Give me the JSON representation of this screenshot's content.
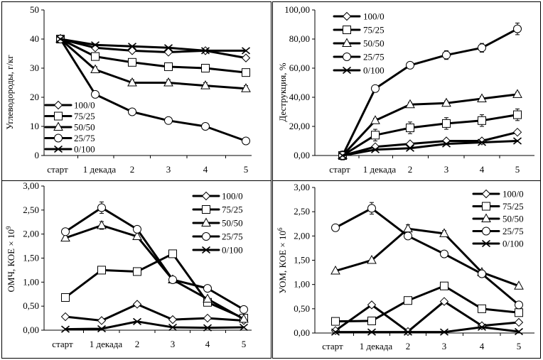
{
  "chart_data": [
    {
      "id": "hydrocarbons",
      "type": "line",
      "ylabel": "Углеводороды, г/кг",
      "ylim": [
        0,
        50
      ],
      "yticks": [
        0,
        10,
        20,
        30,
        40,
        50
      ],
      "ytick_labels": [
        "0",
        "10",
        "20",
        "30",
        "40",
        "50"
      ],
      "categories": [
        "старт",
        "1 декада",
        "2",
        "3",
        "4",
        "5"
      ],
      "legend_position": "bottom-left",
      "series": [
        {
          "name": "100/0",
          "marker": "diamond",
          "values": [
            40,
            37,
            36,
            35.5,
            36,
            33.5
          ],
          "errors": [
            0,
            0,
            0,
            0,
            0,
            0
          ]
        },
        {
          "name": "75/25",
          "marker": "square",
          "values": [
            40,
            34,
            32,
            30.5,
            30,
            28.5
          ],
          "errors": [
            1.2,
            1.2,
            1.2,
            1.2,
            1.2,
            1.2
          ]
        },
        {
          "name": "50/50",
          "marker": "triangle",
          "values": [
            40,
            29.5,
            25,
            25,
            24,
            23
          ],
          "errors": [
            1,
            1,
            1,
            1,
            1,
            1
          ]
        },
        {
          "name": "25/75",
          "marker": "circle",
          "values": [
            40,
            21,
            15,
            12,
            10,
            5
          ],
          "errors": [
            0,
            0,
            0,
            0,
            0,
            0
          ]
        },
        {
          "name": "0/100",
          "marker": "x",
          "values": [
            40,
            38,
            37.5,
            37,
            36,
            36
          ],
          "errors": [
            0,
            0,
            0,
            0,
            0,
            0
          ]
        }
      ]
    },
    {
      "id": "destruction",
      "type": "line",
      "ylabel": "Деструкция, %",
      "ylim": [
        0,
        100
      ],
      "yticks": [
        0,
        20,
        40,
        60,
        80,
        100
      ],
      "ytick_labels": [
        "0,00",
        "20,00",
        "40,00",
        "60,00",
        "80,00",
        "100,00"
      ],
      "categories": [
        "старт",
        "1 декада",
        "2",
        "3",
        "4",
        "5"
      ],
      "legend_position": "top-left",
      "series": [
        {
          "name": "100/0",
          "marker": "diamond",
          "values": [
            0,
            6,
            8,
            10,
            10,
            16
          ],
          "errors": [
            0,
            0,
            0,
            0,
            0,
            0
          ]
        },
        {
          "name": "75/25",
          "marker": "square",
          "values": [
            0,
            14,
            19,
            22,
            24,
            28
          ],
          "errors": [
            3,
            4,
            4,
            4,
            4,
            4
          ]
        },
        {
          "name": "50/50",
          "marker": "triangle",
          "values": [
            0,
            24,
            35,
            36,
            39,
            42
          ],
          "errors": [
            1.5,
            1.5,
            1.5,
            1.5,
            1.5,
            1.5
          ]
        },
        {
          "name": "25/75",
          "marker": "circle",
          "values": [
            0,
            46,
            62,
            69,
            74,
            87
          ],
          "errors": [
            2,
            2,
            2,
            3,
            3,
            4
          ]
        },
        {
          "name": "0/100",
          "marker": "x",
          "values": [
            0,
            4,
            5,
            8,
            9,
            10
          ],
          "errors": [
            0,
            0,
            0,
            0,
            0,
            0
          ]
        }
      ]
    },
    {
      "id": "omch",
      "type": "line",
      "ylabel": "ОМЧ, КОЕ × 10",
      "ylabel_sup": "9",
      "ylim": [
        0,
        3
      ],
      "yticks": [
        0,
        0.5,
        1,
        1.5,
        2,
        2.5,
        3
      ],
      "ytick_labels": [
        "0,00",
        "0,50",
        "1,00",
        "1,50",
        "2,00",
        "2,50",
        "3,00"
      ],
      "categories": [
        "старт",
        "1 декада",
        "2",
        "3",
        "4",
        "5"
      ],
      "legend_position": "top-right",
      "series": [
        {
          "name": "100/0",
          "marker": "diamond",
          "values": [
            0.28,
            0.2,
            0.54,
            0.22,
            0.25,
            0.2
          ],
          "errors": [
            0,
            0,
            0,
            0,
            0,
            0
          ]
        },
        {
          "name": "75/25",
          "marker": "square",
          "values": [
            0.68,
            1.25,
            1.22,
            1.59,
            0.58,
            0.25
          ],
          "errors": [
            0,
            0,
            0,
            0,
            0,
            0
          ]
        },
        {
          "name": "50/50",
          "marker": "triangle",
          "values": [
            1.92,
            2.18,
            1.95,
            1.05,
            0.65,
            0.23
          ],
          "errors": [
            0,
            0.08,
            0,
            0,
            0,
            0
          ]
        },
        {
          "name": "25/75",
          "marker": "circle",
          "values": [
            2.05,
            2.55,
            2.1,
            1.05,
            0.87,
            0.43
          ],
          "errors": [
            0,
            0.12,
            0.06,
            0,
            0,
            0
          ]
        },
        {
          "name": "0/100",
          "marker": "x",
          "values": [
            0.02,
            0.03,
            0.18,
            0.06,
            0.05,
            0.06
          ],
          "errors": [
            0,
            0,
            0,
            0,
            0,
            0
          ]
        }
      ]
    },
    {
      "id": "uom",
      "type": "line",
      "ylabel": "УОМ, КОЕ × 10",
      "ylabel_sup": "6",
      "ylim": [
        0,
        3
      ],
      "yticks": [
        0,
        0.5,
        1,
        1.5,
        2,
        2.5,
        3
      ],
      "ytick_labels": [
        "0,00",
        "0,50",
        "1,00",
        "1,50",
        "2,00",
        "2,50",
        "3,00"
      ],
      "categories": [
        "старт",
        "1 декада",
        "2",
        "3",
        "4",
        "5"
      ],
      "legend_position": "top-right",
      "series": [
        {
          "name": "100/0",
          "marker": "diamond",
          "values": [
            0.05,
            0.58,
            0.03,
            0.65,
            0.15,
            0.22
          ],
          "errors": [
            0,
            0,
            0,
            0,
            0,
            0
          ]
        },
        {
          "name": "75/25",
          "marker": "square",
          "values": [
            0.24,
            0.25,
            0.67,
            0.97,
            0.5,
            0.42
          ],
          "errors": [
            0,
            0,
            0,
            0,
            0,
            0
          ]
        },
        {
          "name": "50/50",
          "marker": "triangle",
          "values": [
            1.28,
            1.5,
            2.15,
            2.05,
            1.25,
            0.97
          ],
          "errors": [
            0,
            0,
            0.08,
            0.06,
            0,
            0
          ]
        },
        {
          "name": "25/75",
          "marker": "circle",
          "values": [
            2.17,
            2.57,
            2.0,
            1.63,
            1.22,
            0.58
          ],
          "errors": [
            0,
            0.12,
            0.07,
            0,
            0,
            0
          ]
        },
        {
          "name": "0/100",
          "marker": "x",
          "values": [
            0.02,
            0.02,
            0.02,
            0.02,
            0.12,
            0.03
          ],
          "errors": [
            0,
            0,
            0,
            0,
            0,
            0
          ]
        }
      ]
    }
  ]
}
